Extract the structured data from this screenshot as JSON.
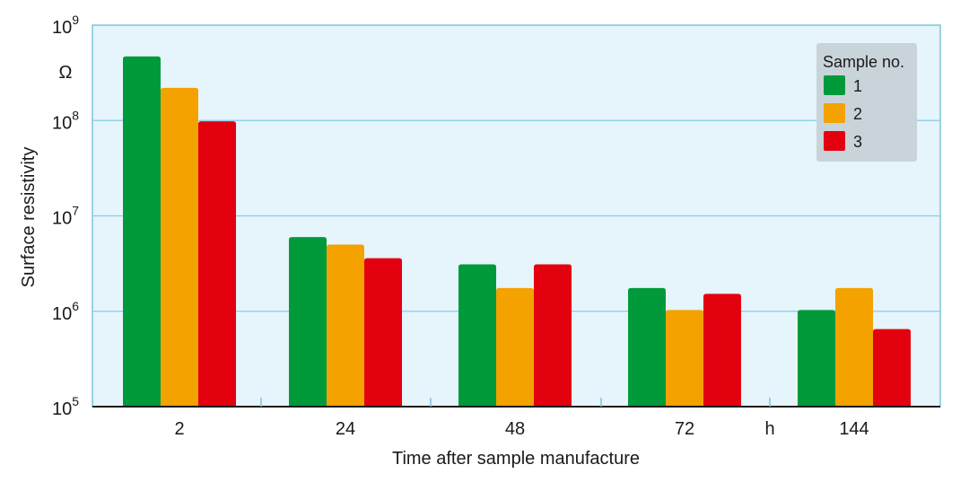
{
  "chart_data": {
    "type": "bar",
    "yscale": "log",
    "ylim": [
      100000,
      1000000000
    ],
    "yticks": [
      {
        "value": 100000,
        "base": "10",
        "exp": "5"
      },
      {
        "value": 1000000,
        "base": "10",
        "exp": "6"
      },
      {
        "value": 10000000,
        "base": "10",
        "exp": "7"
      },
      {
        "value": 100000000,
        "base": "10",
        "exp": "8"
      },
      {
        "value": 1000000000,
        "base": "10",
        "exp": "9"
      }
    ],
    "y_unit": "Ω",
    "ylabel": "Surface resistivity",
    "xlabel": "Time after sample manufacture",
    "x_unit": "h",
    "categories": [
      "2",
      "24",
      "48",
      "72",
      "144"
    ],
    "series": [
      {
        "name": "1",
        "color": "#009a3a",
        "values": [
          470000000,
          6000000,
          3100000,
          1750000,
          1030000
        ]
      },
      {
        "name": "2",
        "color": "#f3a200",
        "values": [
          220000000,
          5000000,
          1750000,
          1030000,
          1750000
        ]
      },
      {
        "name": "3",
        "color": "#e3000f",
        "values": [
          98000000,
          3600000,
          3100000,
          1520000,
          650000
        ]
      }
    ],
    "legend": {
      "title": "Sample no.",
      "position": "top-right"
    },
    "grid": true,
    "colors": {
      "plot_background": "#e6f4fb",
      "grid": "#87cde6",
      "legend_background": "#c9d4da",
      "frame": "#7dc6e0"
    }
  }
}
